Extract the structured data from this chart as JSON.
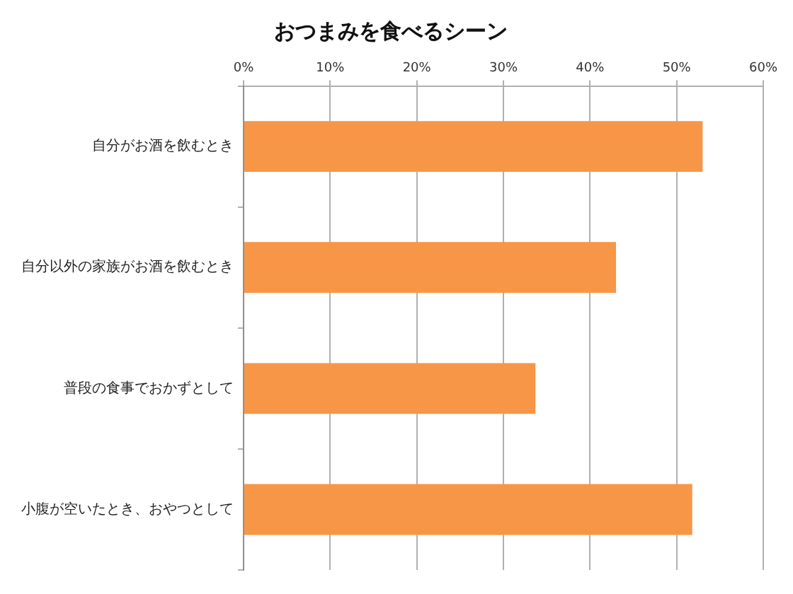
{
  "chart_data": {
    "type": "bar",
    "orientation": "horizontal",
    "title": "おつまみを食べるシーン",
    "categories": [
      "自分がお酒を飲むとき",
      "自分以外の家族がお酒を飲むとき",
      "普段の食事でおかずとして",
      "小腹が空いたとき、おやつとして"
    ],
    "values": [
      53.0,
      43.0,
      33.7,
      51.8
    ],
    "color": "#f79646",
    "xlim": [
      0,
      60
    ],
    "xticks": [
      {
        "value": 0,
        "label": "0%"
      },
      {
        "value": 10,
        "label": "10%"
      },
      {
        "value": 20,
        "label": "20%"
      },
      {
        "value": 30,
        "label": "30%"
      },
      {
        "value": 40,
        "label": "40%"
      },
      {
        "value": 50,
        "label": "50%"
      },
      {
        "value": 60,
        "label": "60%"
      }
    ],
    "grid": "x",
    "legend": false
  }
}
